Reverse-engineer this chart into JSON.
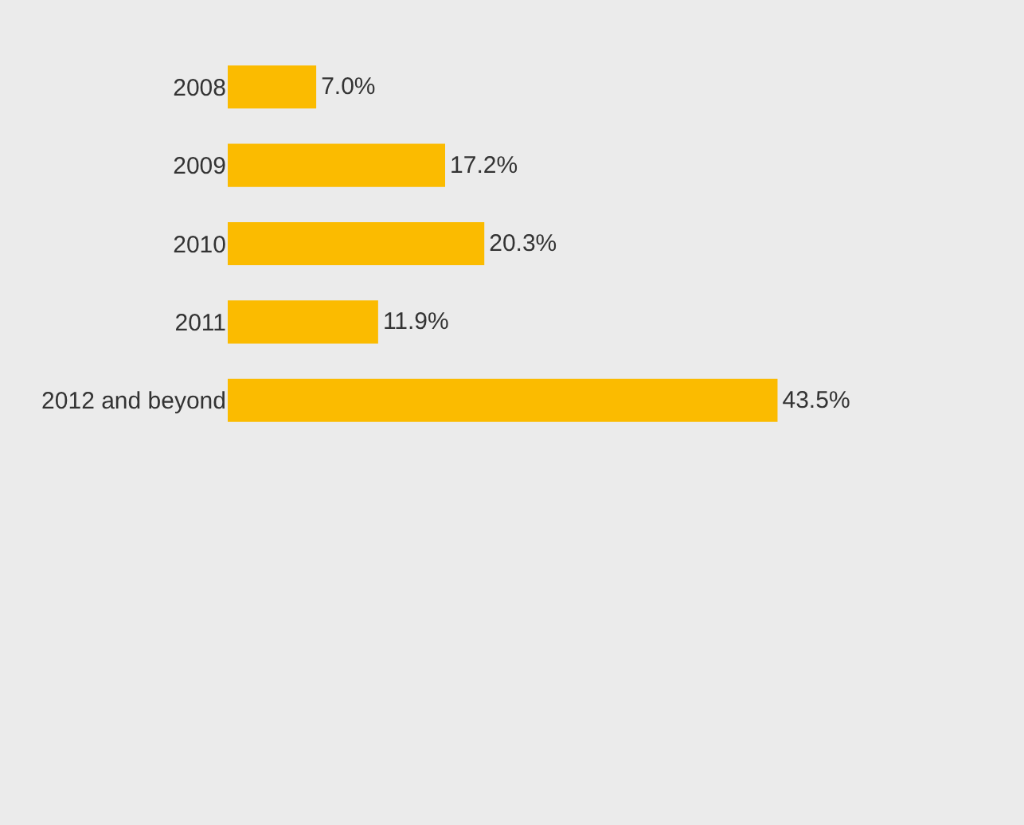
{
  "chart_data": {
    "type": "bar",
    "orientation": "horizontal",
    "categories": [
      "2008",
      "2009",
      "2010",
      "2011",
      "2012 and beyond"
    ],
    "values": [
      7.0,
      17.2,
      20.3,
      11.9,
      43.5
    ],
    "value_labels": [
      "7.0%",
      "17.2%",
      "20.3%",
      "11.9%",
      "43.5%"
    ],
    "color": "#fbbb00",
    "xlim": [
      0,
      63
    ],
    "tick_labels": "y",
    "legend": false
  }
}
